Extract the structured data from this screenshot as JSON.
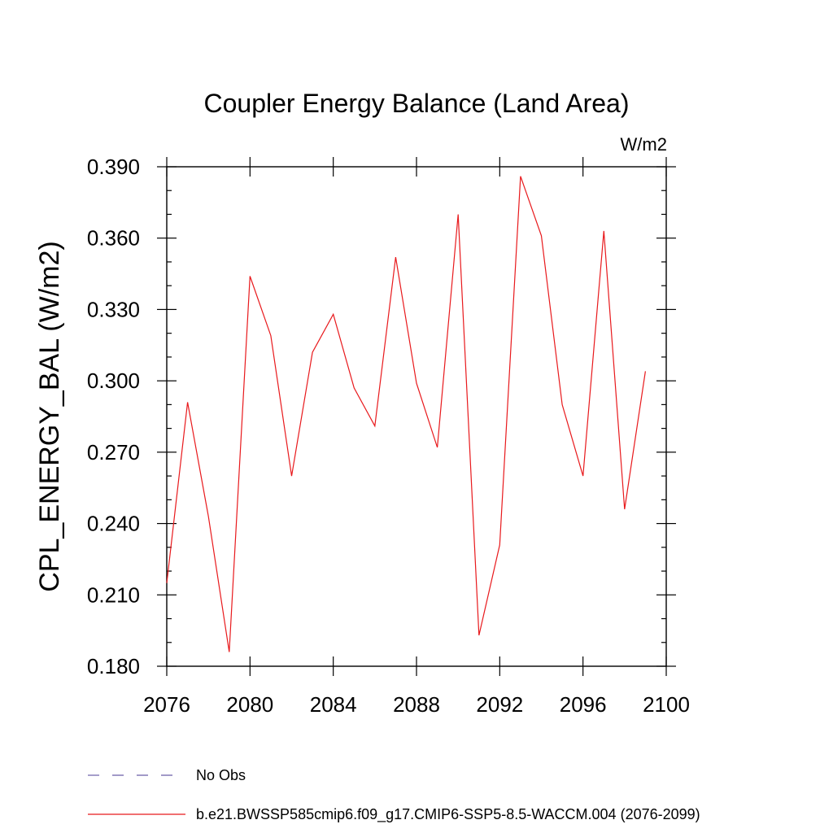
{
  "chart_data": {
    "type": "line",
    "title": "Coupler Energy Balance (Land Area)",
    "units_label": "W/m2",
    "xlabel": "",
    "ylabel": "CPL_ENERGY_BAL  (W/m2)",
    "xlim": [
      2076,
      2100
    ],
    "ylim": [
      0.18,
      0.395
    ],
    "x_ticks": [
      2076,
      2080,
      2084,
      2088,
      2092,
      2096,
      2100
    ],
    "x_tick_labels": [
      "2076",
      "2080",
      "2084",
      "2088",
      "2092",
      "2096",
      "2100"
    ],
    "y_ticks": [
      0.18,
      0.21,
      0.24,
      0.27,
      0.3,
      0.33,
      0.36,
      0.39
    ],
    "y_tick_labels": [
      "0.180",
      "0.210",
      "0.240",
      "0.270",
      "0.300",
      "0.330",
      "0.360",
      "0.390"
    ],
    "grid": false,
    "legend_position": "bottom",
    "series": [
      {
        "name": "b.e21.BWSSP585cmip6.f09_g17.CMIP6-SSP5-8.5-WACCM.004 (2076-2099)",
        "color": "#e8191c",
        "style": "solid",
        "x": [
          2076,
          2077,
          2078,
          2079,
          2080,
          2081,
          2082,
          2083,
          2084,
          2085,
          2086,
          2087,
          2088,
          2089,
          2090,
          2091,
          2092,
          2093,
          2094,
          2095,
          2096,
          2097,
          2098,
          2099
        ],
        "y": [
          0.215,
          0.291,
          0.243,
          0.186,
          0.344,
          0.319,
          0.26,
          0.312,
          0.328,
          0.297,
          0.281,
          0.352,
          0.299,
          0.272,
          0.37,
          0.193,
          0.231,
          0.386,
          0.361,
          0.29,
          0.26,
          0.363,
          0.246,
          0.304
        ]
      }
    ],
    "legend": [
      {
        "label": "No Obs",
        "color": "#6b5ea8",
        "style": "dashed"
      },
      {
        "label": "b.e21.BWSSP585cmip6.f09_g17.CMIP6-SSP5-8.5-WACCM.004 (2076-2099)",
        "color": "#e8191c",
        "style": "solid"
      }
    ]
  }
}
